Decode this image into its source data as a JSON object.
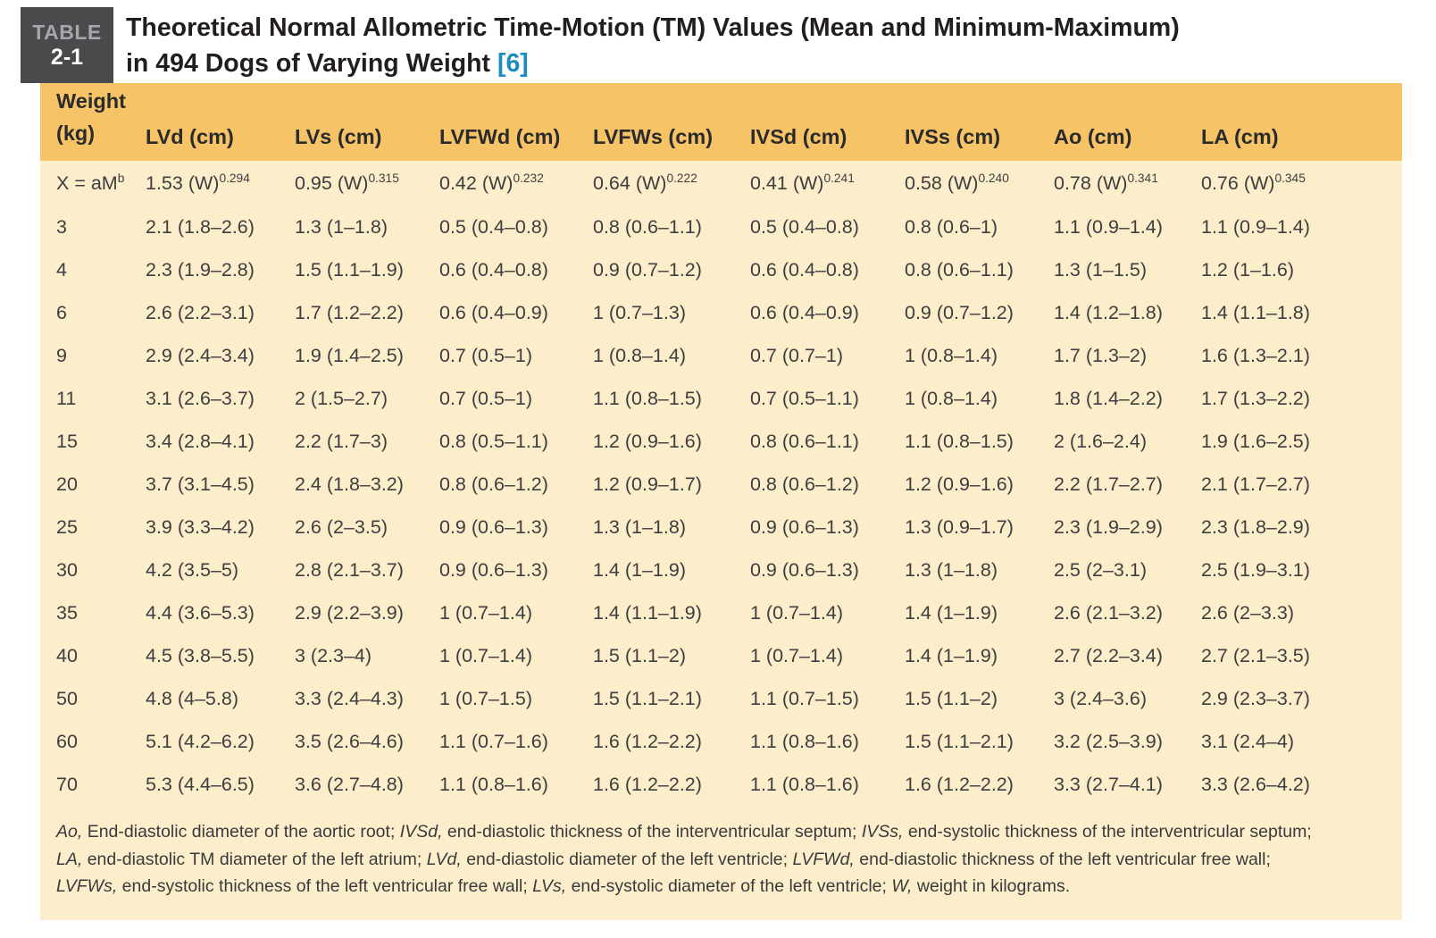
{
  "table_label": {
    "line1": "TABLE",
    "line2": "2-1"
  },
  "title": {
    "line1": "Theoretical Normal Allometric Time-Motion (TM) Values (Mean and Minimum-Maximum)",
    "line2_text": "in 494 Dogs of Varying Weight ",
    "citation": "[6]"
  },
  "colors": {
    "header_band": "#f6c466",
    "body_band": "#fceecb",
    "label_box": "#4a4a4c",
    "citation_blue": "#1a8cbe",
    "title_text": "#221e20",
    "cell_text": "#3e3e40"
  },
  "table": {
    "headers": [
      {
        "line1": "Weight",
        "line2": "(kg)"
      },
      {
        "label": "LVd (cm)"
      },
      {
        "label": "LVs (cm)"
      },
      {
        "label": "LVFWd (cm)"
      },
      {
        "label": "LVFWs (cm)"
      },
      {
        "label": "IVSd (cm)"
      },
      {
        "label": "IVSs (cm)"
      },
      {
        "label": "Ao (cm)"
      },
      {
        "label": "LA (cm)"
      }
    ],
    "formula_row": [
      {
        "base": "X = aM",
        "sup": "b"
      },
      {
        "base": "1.53 (W)",
        "sup": "0.294"
      },
      {
        "base": "0.95 (W)",
        "sup": "0.315"
      },
      {
        "base": "0.42 (W)",
        "sup": "0.232"
      },
      {
        "base": "0.64 (W)",
        "sup": "0.222"
      },
      {
        "base": "0.41 (W)",
        "sup": "0.241"
      },
      {
        "base": "0.58 (W)",
        "sup": "0.240"
      },
      {
        "base": "0.78 (W)",
        "sup": "0.341"
      },
      {
        "base": "0.76 (W)",
        "sup": "0.345"
      }
    ],
    "rows": [
      [
        "3",
        "2.1 (1.8–2.6)",
        "1.3 (1–1.8)",
        "0.5 (0.4–0.8)",
        "0.8 (0.6–1.1)",
        "0.5 (0.4–0.8)",
        "0.8 (0.6–1)",
        "1.1 (0.9–1.4)",
        "1.1 (0.9–1.4)"
      ],
      [
        "4",
        "2.3 (1.9–2.8)",
        "1.5 (1.1–1.9)",
        "0.6 (0.4–0.8)",
        "0.9 (0.7–1.2)",
        "0.6 (0.4–0.8)",
        "0.8 (0.6–1.1)",
        "1.3 (1–1.5)",
        "1.2 (1–1.6)"
      ],
      [
        "6",
        "2.6 (2.2–3.1)",
        "1.7 (1.2–2.2)",
        "0.6 (0.4–0.9)",
        "1 (0.7–1.3)",
        "0.6 (0.4–0.9)",
        "0.9 (0.7–1.2)",
        "1.4 (1.2–1.8)",
        "1.4 (1.1–1.8)"
      ],
      [
        "9",
        "2.9 (2.4–3.4)",
        "1.9 (1.4–2.5)",
        "0.7 (0.5–1)",
        "1 (0.8–1.4)",
        "0.7 (0.7–1)",
        "1 (0.8–1.4)",
        "1.7 (1.3–2)",
        "1.6 (1.3–2.1)"
      ],
      [
        "11",
        "3.1 (2.6–3.7)",
        "2 (1.5–2.7)",
        "0.7 (0.5–1)",
        "1.1 (0.8–1.5)",
        "0.7 (0.5–1.1)",
        "1 (0.8–1.4)",
        "1.8 (1.4–2.2)",
        "1.7 (1.3–2.2)"
      ],
      [
        "15",
        "3.4 (2.8–4.1)",
        "2.2 (1.7–3)",
        "0.8 (0.5–1.1)",
        "1.2 (0.9–1.6)",
        "0.8 (0.6–1.1)",
        "1.1 (0.8–1.5)",
        "2 (1.6–2.4)",
        "1.9 (1.6–2.5)"
      ],
      [
        "20",
        "3.7 (3.1–4.5)",
        "2.4 (1.8–3.2)",
        "0.8 (0.6–1.2)",
        "1.2 (0.9–1.7)",
        "0.8 (0.6–1.2)",
        "1.2 (0.9–1.6)",
        "2.2 (1.7–2.7)",
        "2.1 (1.7–2.7)"
      ],
      [
        "25",
        "3.9 (3.3–4.2)",
        "2.6 (2–3.5)",
        "0.9 (0.6–1.3)",
        "1.3 (1–1.8)",
        "0.9 (0.6–1.3)",
        "1.3 (0.9–1.7)",
        "2.3 (1.9–2.9)",
        "2.3 (1.8–2.9)"
      ],
      [
        "30",
        "4.2 (3.5–5)",
        "2.8 (2.1–3.7)",
        "0.9 (0.6–1.3)",
        "1.4 (1–1.9)",
        "0.9 (0.6–1.3)",
        "1.3 (1–1.8)",
        "2.5 (2–3.1)",
        "2.5 (1.9–3.1)"
      ],
      [
        "35",
        "4.4 (3.6–5.3)",
        "2.9 (2.2–3.9)",
        "1 (0.7–1.4)",
        "1.4 (1.1–1.9)",
        "1 (0.7–1.4)",
        "1.4 (1–1.9)",
        "2.6 (2.1–3.2)",
        "2.6 (2–3.3)"
      ],
      [
        "40",
        "4.5 (3.8–5.5)",
        "3 (2.3–4)",
        "1 (0.7–1.4)",
        "1.5 (1.1–2)",
        "1 (0.7–1.4)",
        "1.4 (1–1.9)",
        "2.7 (2.2–3.4)",
        "2.7 (2.1–3.5)"
      ],
      [
        "50",
        "4.8 (4–5.8)",
        "3.3 (2.4–4.3)",
        "1 (0.7–1.5)",
        "1.5 (1.1–2.1)",
        "1.1 (0.7–1.5)",
        "1.5 (1.1–2)",
        "3 (2.4–3.6)",
        "2.9 (2.3–3.7)"
      ],
      [
        "60",
        "5.1 (4.2–6.2)",
        "3.5 (2.6–4.6)",
        "1.1 (0.7–1.6)",
        "1.6 (1.2–2.2)",
        "1.1 (0.8–1.6)",
        "1.5 (1.1–2.1)",
        "3.2 (2.5–3.9)",
        "3.1 (2.4–4)"
      ],
      [
        "70",
        "5.3 (4.4–6.5)",
        "3.6 (2.7–4.8)",
        "1.1 (0.8–1.6)",
        "1.6 (1.2–2.2)",
        "1.1 (0.8–1.6)",
        "1.6 (1.2–2.2)",
        "3.3 (2.7–4.1)",
        "3.3 (2.6–4.2)"
      ]
    ]
  },
  "footnotes": [
    [
      {
        "text": "Ao,",
        "italic": true
      },
      {
        "text": " End-diastolic diameter of the aortic root; ",
        "italic": false
      },
      {
        "text": "IVSd,",
        "italic": true
      },
      {
        "text": " end-diastolic thickness of the interventricular septum; ",
        "italic": false
      },
      {
        "text": "IVSs,",
        "italic": true
      },
      {
        "text": " end-systolic thickness of the interventricular septum;",
        "italic": false
      }
    ],
    [
      {
        "text": "LA,",
        "italic": true
      },
      {
        "text": " end-diastolic TM diameter of the left atrium; ",
        "italic": false
      },
      {
        "text": "LVd,",
        "italic": true
      },
      {
        "text": " end-diastolic diameter of the left ventricle; ",
        "italic": false
      },
      {
        "text": "LVFWd,",
        "italic": true
      },
      {
        "text": " end-diastolic thickness of the left ventricular free wall;",
        "italic": false
      }
    ],
    [
      {
        "text": "LVFWs,",
        "italic": true
      },
      {
        "text": " end-systolic thickness of the left ventricular free wall; ",
        "italic": false
      },
      {
        "text": "LVs,",
        "italic": true
      },
      {
        "text": " end-systolic diameter of the left ventricle; ",
        "italic": false
      },
      {
        "text": "W,",
        "italic": true
      },
      {
        "text": " weight in kilograms.",
        "italic": false
      }
    ]
  ]
}
